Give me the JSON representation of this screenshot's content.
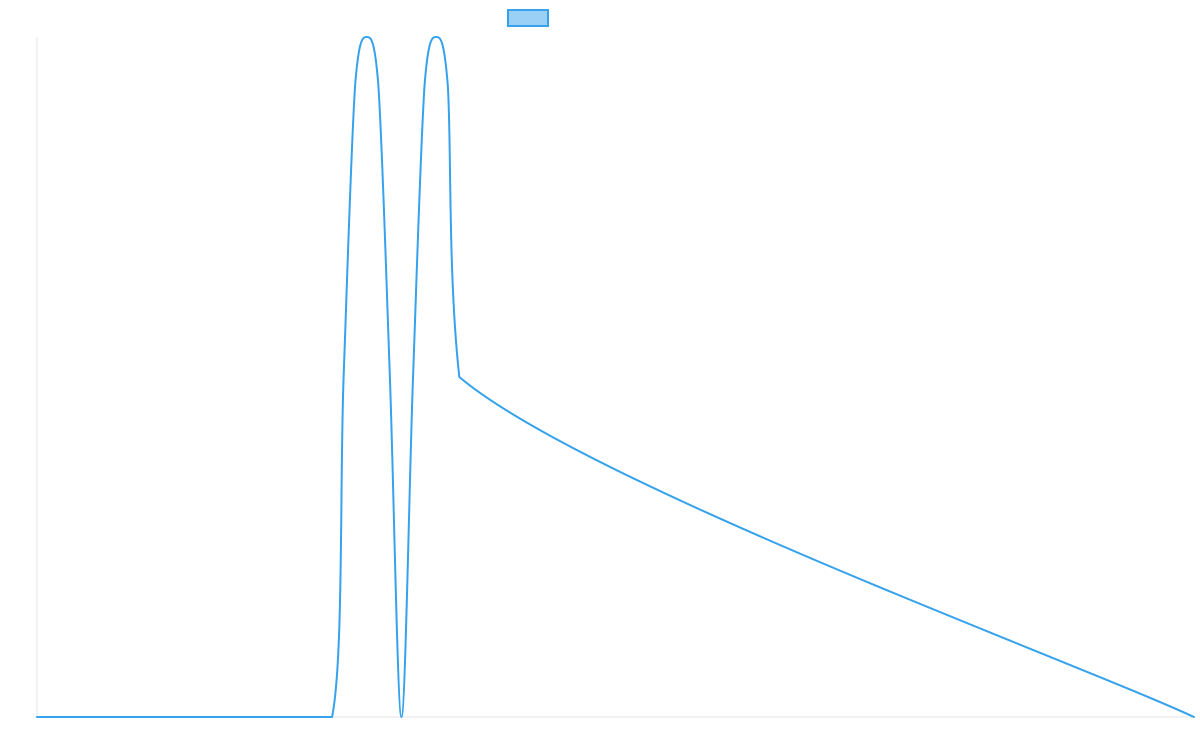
{
  "chart_data": {
    "type": "line",
    "title": "",
    "xlabel": "",
    "ylabel": "",
    "xlim": [
      0,
      100
    ],
    "ylim": [
      0,
      1
    ],
    "grid": false,
    "legend": {
      "placement": "top-center",
      "entries": [
        {
          "label": ""
        }
      ]
    },
    "series": [
      {
        "color": "#36a2eb",
        "fill": "#9ad0f5",
        "x": [
          0,
          25.5,
          26.5,
          27.5,
          28.5,
          29.5,
          30.5,
          31.5,
          32.5,
          33.5,
          34.5,
          35.5,
          36.5,
          100
        ],
        "y": [
          0,
          0,
          0.5,
          0.93,
          1.0,
          0.93,
          0.5,
          0.0,
          0.5,
          0.93,
          1.0,
          0.93,
          0.5,
          0
        ]
      }
    ]
  }
}
